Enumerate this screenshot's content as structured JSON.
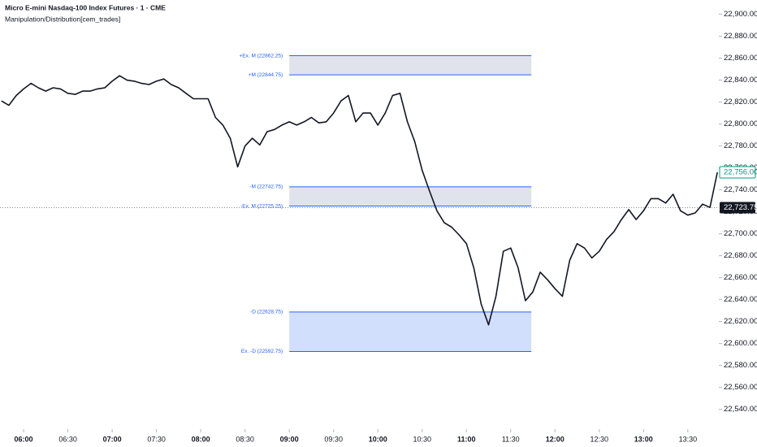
{
  "chart_data": {
    "type": "line",
    "title": "Micro E-mini Nasdaq-100 Index Futures · 1 · CME",
    "subtitle": "Manipulation/Distribution[cem_trades]",
    "color": "#131722",
    "x": [
      "05:45",
      "05:50",
      "05:55",
      "06:00",
      "06:05",
      "06:10",
      "06:15",
      "06:20",
      "06:25",
      "06:30",
      "06:35",
      "06:40",
      "06:45",
      "06:50",
      "06:55",
      "07:00",
      "07:05",
      "07:10",
      "07:15",
      "07:20",
      "07:25",
      "07:30",
      "07:35",
      "07:40",
      "07:45",
      "07:50",
      "07:55",
      "08:00",
      "08:05",
      "08:10",
      "08:15",
      "08:20",
      "08:25",
      "08:30",
      "08:35",
      "08:40",
      "08:45",
      "08:50",
      "08:55",
      "09:00",
      "09:05",
      "09:10",
      "09:15",
      "09:20",
      "09:25",
      "09:30",
      "09:35",
      "09:40",
      "09:45",
      "09:50",
      "09:55",
      "10:00",
      "10:05",
      "10:10",
      "10:15",
      "10:20",
      "10:25",
      "10:30",
      "10:35",
      "10:40",
      "10:45",
      "10:50",
      "10:55",
      "11:00",
      "11:05",
      "11:10",
      "11:15",
      "11:20",
      "11:25",
      "11:30",
      "11:35",
      "11:40",
      "11:45",
      "11:50",
      "11:55",
      "12:00",
      "12:05",
      "12:10",
      "12:15",
      "12:20",
      "12:25",
      "12:30",
      "12:35",
      "12:40",
      "12:45",
      "12:50",
      "12:55",
      "13:00",
      "13:05",
      "13:10",
      "13:15",
      "13:20",
      "13:25",
      "13:30",
      "13:35",
      "13:40",
      "13:45",
      "13:50"
    ],
    "values": [
      22821,
      22817,
      22826,
      22832,
      22837,
      22833,
      22830,
      22833,
      22832,
      22828,
      22827,
      22830,
      22830,
      22832,
      22833,
      22839,
      22844,
      22840,
      22839,
      22837,
      22836,
      22839,
      22841,
      22836,
      22833,
      22828,
      22823,
      22823,
      22823,
      22806,
      22799,
      22787,
      22761,
      22780,
      22787,
      22781,
      22793,
      22795,
      22799,
      22802,
      22799,
      22802,
      22806,
      22801,
      22802,
      22810,
      22821,
      22826,
      22802,
      22810,
      22810,
      22799,
      22810,
      22826,
      22828,
      22802,
      22784,
      22758,
      22739,
      22721,
      22710,
      22706,
      22699,
      22691,
      22669,
      22636,
      22617,
      22643,
      22684,
      22687,
      22669,
      22639,
      22647,
      22665,
      22658,
      22650,
      22643,
      22676,
      22691,
      22687,
      22678,
      22684,
      22695,
      22702,
      22713,
      22722,
      22713,
      22721,
      22732,
      22732,
      22728,
      22736,
      22721,
      22717,
      22719,
      22727,
      22724,
      22756
    ],
    "xlim": [
      "05:44",
      "13:51"
    ],
    "xticks": [
      "06:00",
      "06:30",
      "07:00",
      "07:30",
      "08:00",
      "08:30",
      "09:00",
      "09:30",
      "10:00",
      "10:30",
      "11:00",
      "11:30",
      "12:00",
      "12:30",
      "13:00",
      "13:30"
    ],
    "ylim": [
      22522,
      22913
    ],
    "yticks": [
      {
        "value": 22540,
        "label": "22,540.00"
      },
      {
        "value": 22560,
        "label": "22,560.00"
      },
      {
        "value": 22580,
        "label": "22,580.00"
      },
      {
        "value": 22600,
        "label": "22,600.00"
      },
      {
        "value": 22620,
        "label": "22,620.00"
      },
      {
        "value": 22640,
        "label": "22,640.00"
      },
      {
        "value": 22660,
        "label": "22,660.00"
      },
      {
        "value": 22680,
        "label": "22,680.00"
      },
      {
        "value": 22700,
        "label": "22,700.00"
      },
      {
        "value": 22720,
        "label": "22,720.00"
      },
      {
        "value": 22740,
        "label": "22,740.00"
      },
      {
        "value": 22760,
        "label": "22,760.00"
      },
      {
        "value": 22780,
        "label": "22,780.00"
      },
      {
        "value": 22800,
        "label": "22,800.00"
      },
      {
        "value": 22820,
        "label": "22,820.00"
      },
      {
        "value": 22840,
        "label": "22,840.00"
      },
      {
        "value": 22860,
        "label": "22,860.00"
      },
      {
        "value": 22880,
        "label": "22,880.00"
      },
      {
        "value": 22900,
        "label": "22,900.00"
      }
    ],
    "zone_x": [
      "09:00",
      "11:44"
    ],
    "zones": [
      {
        "color": "#e0e3eb",
        "top": {
          "value": 22862.25,
          "label": "+Ex. M (22862.25)"
        },
        "bottom": {
          "value": 22844.75,
          "label": "+M (22844.75)"
        }
      },
      {
        "color": "#e0e3eb",
        "top": {
          "value": 22742.75,
          "label": "-M (22742.75)"
        },
        "bottom": {
          "value": 22725.25,
          "label": "-Ex. M (22725.25)"
        }
      },
      {
        "color": "#d1dffc",
        "top": {
          "value": 22628.75,
          "label": "-D (22628.75)"
        },
        "bottom": {
          "value": 22592.75,
          "label": "Ex. -D (22592.75)"
        }
      }
    ],
    "zone_line_color": "#2962ff",
    "last_price": {
      "value": 22756,
      "label": "22,756.00",
      "color": "#089981"
    },
    "crosshair": {
      "value": 22723.75,
      "label": "22,723.75",
      "color": "#131722"
    }
  }
}
